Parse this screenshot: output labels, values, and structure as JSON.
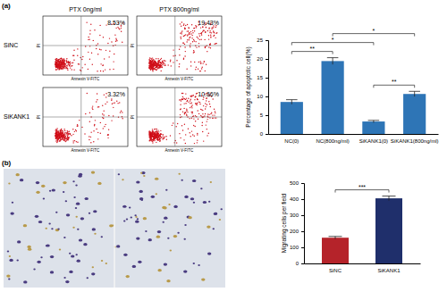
{
  "panel_labels": [
    "(a)",
    "(b)"
  ],
  "flow_cytometry": {
    "columns": [
      "PTX 0ng/ml",
      "PTX 800ng/ml"
    ],
    "rows": [
      "SiNC",
      "SiKANK1"
    ],
    "x_label": "Annexin V-FITC",
    "y_label": "PI",
    "percentages": [
      [
        "8.53%",
        "19.43%"
      ],
      [
        "3.32%",
        "10.66%"
      ]
    ]
  },
  "chart_data": [
    {
      "type": "bar",
      "y_label": "Percentage of apoptotic cell(%)",
      "categories": [
        "NC(0)",
        "NC(800ng/ml)",
        "SiKANK1(0)",
        "SiKANK1(800ng/ml)"
      ],
      "values": [
        8.53,
        19.43,
        3.32,
        10.66
      ],
      "errors": [
        0.6,
        0.9,
        0.3,
        0.7
      ],
      "color": "#2e75b6",
      "ylim": [
        0,
        25
      ],
      "yticks": [
        0,
        5,
        10,
        15,
        20,
        25
      ],
      "annotations": [
        {
          "from": 0,
          "to": 1,
          "text": "**"
        },
        {
          "from": 2,
          "to": 3,
          "text": "**"
        },
        {
          "from": 0,
          "to": 2,
          "text": "*"
        },
        {
          "from": 1,
          "to": 3,
          "text": "*"
        }
      ]
    },
    {
      "type": "bar",
      "y_label": "Migrating cells per field",
      "categories": [
        "SiNC",
        "SiKANK1"
      ],
      "values": [
        160,
        405
      ],
      "errors": [
        8,
        14
      ],
      "colors": [
        "#b5232a",
        "#1f2f6b"
      ],
      "ylim": [
        0,
        500
      ],
      "yticks": [
        0,
        100,
        200,
        300,
        400,
        500
      ],
      "annotations": [
        {
          "from": 0,
          "to": 1,
          "text": "***"
        }
      ]
    }
  ]
}
